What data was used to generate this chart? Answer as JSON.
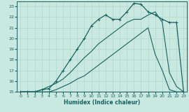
{
  "xlabel": "Humidex (Indice chaleur)",
  "ylabel": "",
  "xlim": [
    -0.5,
    23.5
  ],
  "ylim": [
    15,
    23.5
  ],
  "xticks": [
    0,
    1,
    2,
    3,
    4,
    5,
    6,
    7,
    8,
    9,
    10,
    11,
    12,
    13,
    14,
    15,
    16,
    17,
    18,
    19,
    20,
    21,
    22,
    23
  ],
  "yticks": [
    15,
    16,
    17,
    18,
    19,
    20,
    21,
    22,
    23
  ],
  "bg_color": "#c8e8e0",
  "grid_color": "#b0d8d0",
  "line_color": "#1a6060",
  "lines": [
    {
      "x": [
        0,
        1,
        2,
        3,
        4,
        5,
        6,
        7,
        8,
        9,
        10,
        11,
        12,
        13,
        14,
        22,
        23
      ],
      "y": [
        15,
        15,
        15,
        15,
        15,
        15,
        15,
        15,
        15,
        15,
        15,
        15,
        15,
        15,
        15,
        15,
        15
      ],
      "marker": null,
      "lw": 0.8
    },
    {
      "x": [
        0,
        1,
        2,
        3,
        4,
        5,
        6,
        7,
        8,
        9,
        10,
        11,
        12,
        13,
        14,
        15,
        16,
        17,
        18,
        19,
        20,
        21,
        22,
        23
      ],
      "y": [
        15,
        15,
        15,
        15.2,
        15.3,
        16,
        17,
        18,
        19,
        20,
        21.2,
        21.8,
        22.2,
        21.8,
        21.8,
        22.5,
        23.3,
        23.2,
        22.5,
        22.2,
        21.8,
        21.5,
        21.5,
        15
      ],
      "marker": "+",
      "lw": 0.9
    },
    {
      "x": [
        0,
        1,
        2,
        3,
        4,
        5,
        6,
        7,
        8,
        9,
        10,
        11,
        12,
        13,
        14,
        15,
        16,
        17,
        18,
        19,
        20,
        21,
        22,
        23
      ],
      "y": [
        15,
        15,
        15,
        15.2,
        15.5,
        15.8,
        16.2,
        16.8,
        17.5,
        18.2,
        18.8,
        19.5,
        20.0,
        20.5,
        21.0,
        21.5,
        21.8,
        21.8,
        22.2,
        22.5,
        21.5,
        16.8,
        15.5,
        15
      ],
      "marker": null,
      "lw": 0.8
    },
    {
      "x": [
        0,
        1,
        2,
        3,
        4,
        5,
        6,
        7,
        8,
        9,
        10,
        11,
        12,
        13,
        14,
        15,
        16,
        17,
        18,
        19,
        20,
        21,
        22,
        23
      ],
      "y": [
        15,
        15,
        15,
        15,
        15,
        15.2,
        15.5,
        15.8,
        16.2,
        16.5,
        17.0,
        17.5,
        18.0,
        18.5,
        19.0,
        19.5,
        20.0,
        20.5,
        21.0,
        18.5,
        17.0,
        15.2,
        15,
        15
      ],
      "marker": null,
      "lw": 0.8
    }
  ]
}
